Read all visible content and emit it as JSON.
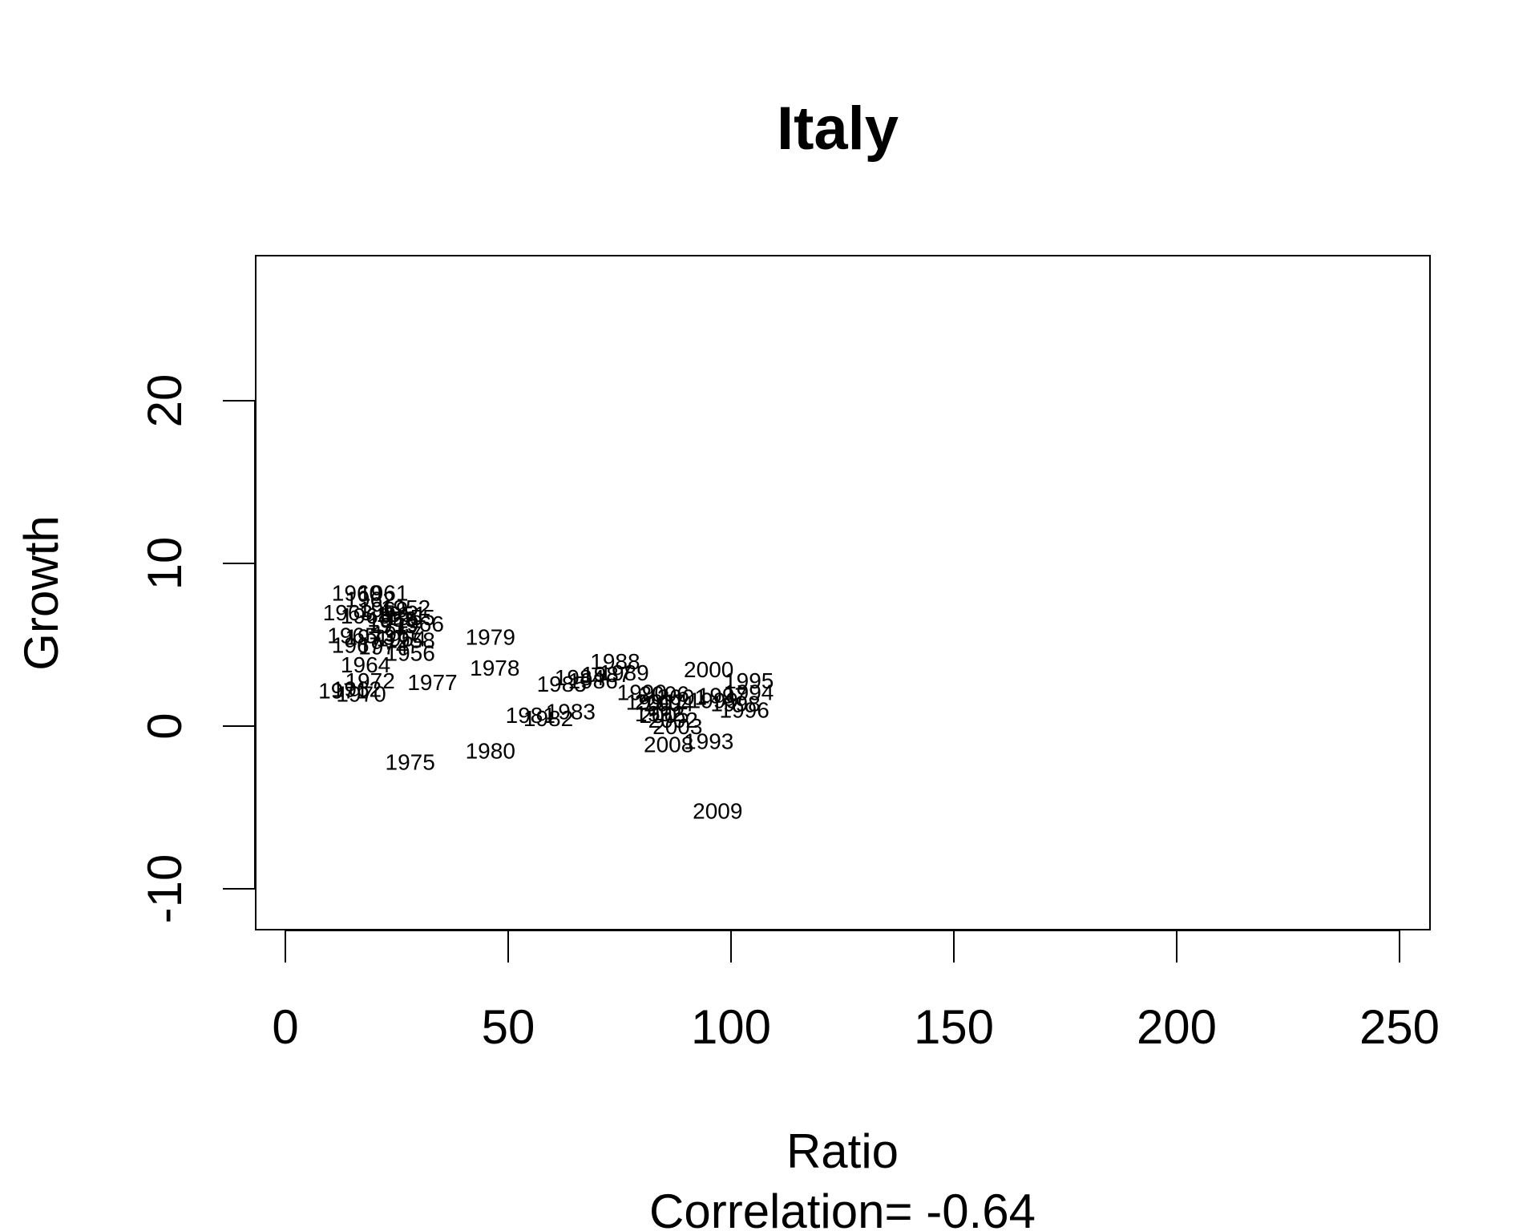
{
  "chart_data": {
    "type": "scatter",
    "title": "Italy",
    "xlabel": "Ratio",
    "ylabel": "Growth",
    "subtitle": "Correlation= -0.64",
    "xlim": [
      -5,
      257
    ],
    "ylim": [
      -12.5,
      28.5
    ],
    "xticks": [
      0,
      50,
      100,
      150,
      200,
      250
    ],
    "yticks": [
      -10,
      0,
      10,
      20
    ],
    "grid": false,
    "legend": "none",
    "marker": "year-label",
    "points": [
      {
        "label": "1960",
        "x": 16,
        "y": 8.2
      },
      {
        "label": "1961",
        "x": 22,
        "y": 8.2
      },
      {
        "label": "1962",
        "x": 19,
        "y": 7.8
      },
      {
        "label": "1963",
        "x": 14,
        "y": 7.0
      },
      {
        "label": "1969",
        "x": 22,
        "y": 7.2
      },
      {
        "label": "1952",
        "x": 27,
        "y": 7.3
      },
      {
        "label": "1951",
        "x": 26,
        "y": 6.9
      },
      {
        "label": "1968",
        "x": 18,
        "y": 6.8
      },
      {
        "label": "1959",
        "x": 24,
        "y": 6.6
      },
      {
        "label": "1955",
        "x": 28,
        "y": 6.7
      },
      {
        "label": "1953",
        "x": 24,
        "y": 6.2
      },
      {
        "label": "1966",
        "x": 30,
        "y": 6.3
      },
      {
        "label": "1957",
        "x": 25,
        "y": 5.7
      },
      {
        "label": "1965",
        "x": 15,
        "y": 5.6
      },
      {
        "label": "1973",
        "x": 19,
        "y": 5.5
      },
      {
        "label": "1954",
        "x": 26,
        "y": 5.4
      },
      {
        "label": "1958",
        "x": 28,
        "y": 5.3
      },
      {
        "label": "1967",
        "x": 16,
        "y": 5.0
      },
      {
        "label": "1974",
        "x": 22,
        "y": 4.9
      },
      {
        "label": "1956",
        "x": 28,
        "y": 4.5
      },
      {
        "label": "1979",
        "x": 46,
        "y": 5.5
      },
      {
        "label": "1978",
        "x": 47,
        "y": 3.6
      },
      {
        "label": "1964",
        "x": 18,
        "y": 3.8
      },
      {
        "label": "1972",
        "x": 19,
        "y": 2.8
      },
      {
        "label": "1977",
        "x": 33,
        "y": 2.7
      },
      {
        "label": "1971",
        "x": 13,
        "y": 2.2
      },
      {
        "label": "1962b",
        "x": 16,
        "y": 2.3
      },
      {
        "label": "1970",
        "x": 17,
        "y": 2.0
      },
      {
        "label": "1975",
        "x": 28,
        "y": -2.2
      },
      {
        "label": "1980",
        "x": 46,
        "y": -1.5
      },
      {
        "label": "1981",
        "x": 55,
        "y": 0.7
      },
      {
        "label": "1982",
        "x": 59,
        "y": 0.5
      },
      {
        "label": "1983",
        "x": 64,
        "y": 0.9
      },
      {
        "label": "1985",
        "x": 62,
        "y": 2.6
      },
      {
        "label": "1984",
        "x": 66,
        "y": 3.0
      },
      {
        "label": "1986",
        "x": 69,
        "y": 2.8
      },
      {
        "label": "1987",
        "x": 72,
        "y": 3.2
      },
      {
        "label": "1988",
        "x": 74,
        "y": 4.0
      },
      {
        "label": "1989",
        "x": 76,
        "y": 3.3
      },
      {
        "label": "1990",
        "x": 80,
        "y": 2.1
      },
      {
        "label": "1991",
        "x": 82,
        "y": 1.5
      },
      {
        "label": "1992",
        "x": 84,
        "y": 0.8
      },
      {
        "label": "1993",
        "x": 95,
        "y": -0.9
      },
      {
        "label": "1994",
        "x": 104,
        "y": 2.1
      },
      {
        "label": "1995",
        "x": 104,
        "y": 2.8
      },
      {
        "label": "1996",
        "x": 103,
        "y": 1.0
      },
      {
        "label": "1997",
        "x": 98,
        "y": 1.9
      },
      {
        "label": "1998",
        "x": 101,
        "y": 1.4
      },
      {
        "label": "1999",
        "x": 96,
        "y": 1.6
      },
      {
        "label": "2000",
        "x": 95,
        "y": 3.5
      },
      {
        "label": "2001",
        "x": 89,
        "y": 1.8
      },
      {
        "label": "2002",
        "x": 87,
        "y": 0.4
      },
      {
        "label": "2003",
        "x": 88,
        "y": 0.0
      },
      {
        "label": "2004",
        "x": 86,
        "y": 1.4
      },
      {
        "label": "2005",
        "x": 85,
        "y": 0.7
      },
      {
        "label": "2006",
        "x": 85,
        "y": 2.0
      },
      {
        "label": "2007",
        "x": 84,
        "y": 1.5
      },
      {
        "label": "2008",
        "x": 86,
        "y": -1.1
      },
      {
        "label": "2009",
        "x": 97,
        "y": -5.2
      }
    ]
  }
}
